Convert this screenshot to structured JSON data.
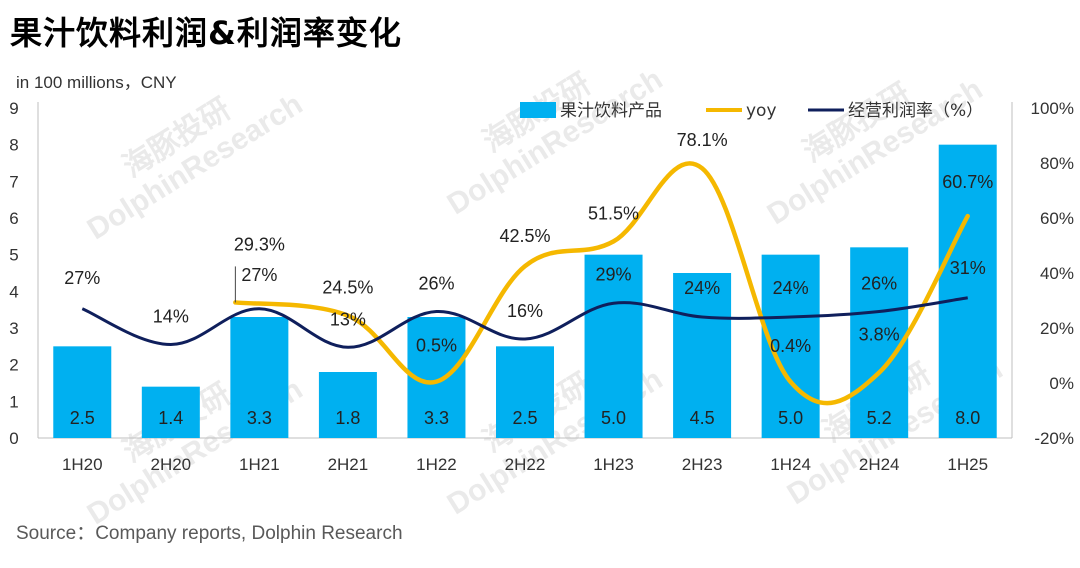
{
  "title": "果汁饮料利润&利润率变化",
  "unit": "in 100 millions，CNY",
  "source": "Source：Company reports, Dolphin Research",
  "watermark": [
    "海豚投研",
    "DolphinResearch"
  ],
  "colors": {
    "bar": "#00b0f0",
    "yoy": "#f5b800",
    "margin": "#0f1f5c"
  },
  "chart_data": {
    "type": "bar",
    "categories": [
      "1H20",
      "2H20",
      "1H21",
      "2H21",
      "1H22",
      "2H22",
      "1H23",
      "2H23",
      "1H24",
      "2H24",
      "1H25"
    ],
    "left_axis": {
      "min": 0,
      "max": 9,
      "ticks": [
        "0",
        "1",
        "2",
        "3",
        "4",
        "5",
        "6",
        "7",
        "8",
        "9"
      ]
    },
    "right_axis": {
      "min": -20,
      "max": 100,
      "ticks": [
        "-20%",
        "0%",
        "20%",
        "40%",
        "60%",
        "80%",
        "100%"
      ]
    },
    "series": [
      {
        "name": "果汁饮料产品",
        "type": "bar",
        "axis": "left",
        "values": [
          2.5,
          1.4,
          3.3,
          1.8,
          3.3,
          2.5,
          5.0,
          4.5,
          5.0,
          5.2,
          8.0
        ],
        "labels": [
          "2.5",
          "1.4",
          "3.3",
          "1.8",
          "3.3",
          "2.5",
          "5.0",
          "4.5",
          "5.0",
          "5.2",
          "8.0"
        ]
      },
      {
        "name": "yoy",
        "type": "line",
        "axis": "right",
        "values": [
          null,
          null,
          29.3,
          24.5,
          0.5,
          42.5,
          51.5,
          78.1,
          0.4,
          3.8,
          60.7
        ],
        "labels": [
          "",
          "",
          "29.3%",
          "24.5%",
          "0.5%",
          "42.5%",
          "51.5%",
          "78.1%",
          "0.4%",
          "3.8%",
          "60.7%"
        ]
      },
      {
        "name": "经营利润率（%）",
        "type": "line",
        "axis": "right",
        "values": [
          27,
          14,
          27,
          13,
          26,
          16,
          29,
          24,
          24,
          26,
          31
        ],
        "labels": [
          "27%",
          "14%",
          "27%",
          "13%",
          "26%",
          "16%",
          "29%",
          "24%",
          "24%",
          "26%",
          "31%"
        ]
      }
    ],
    "legend_position": "top-right"
  }
}
